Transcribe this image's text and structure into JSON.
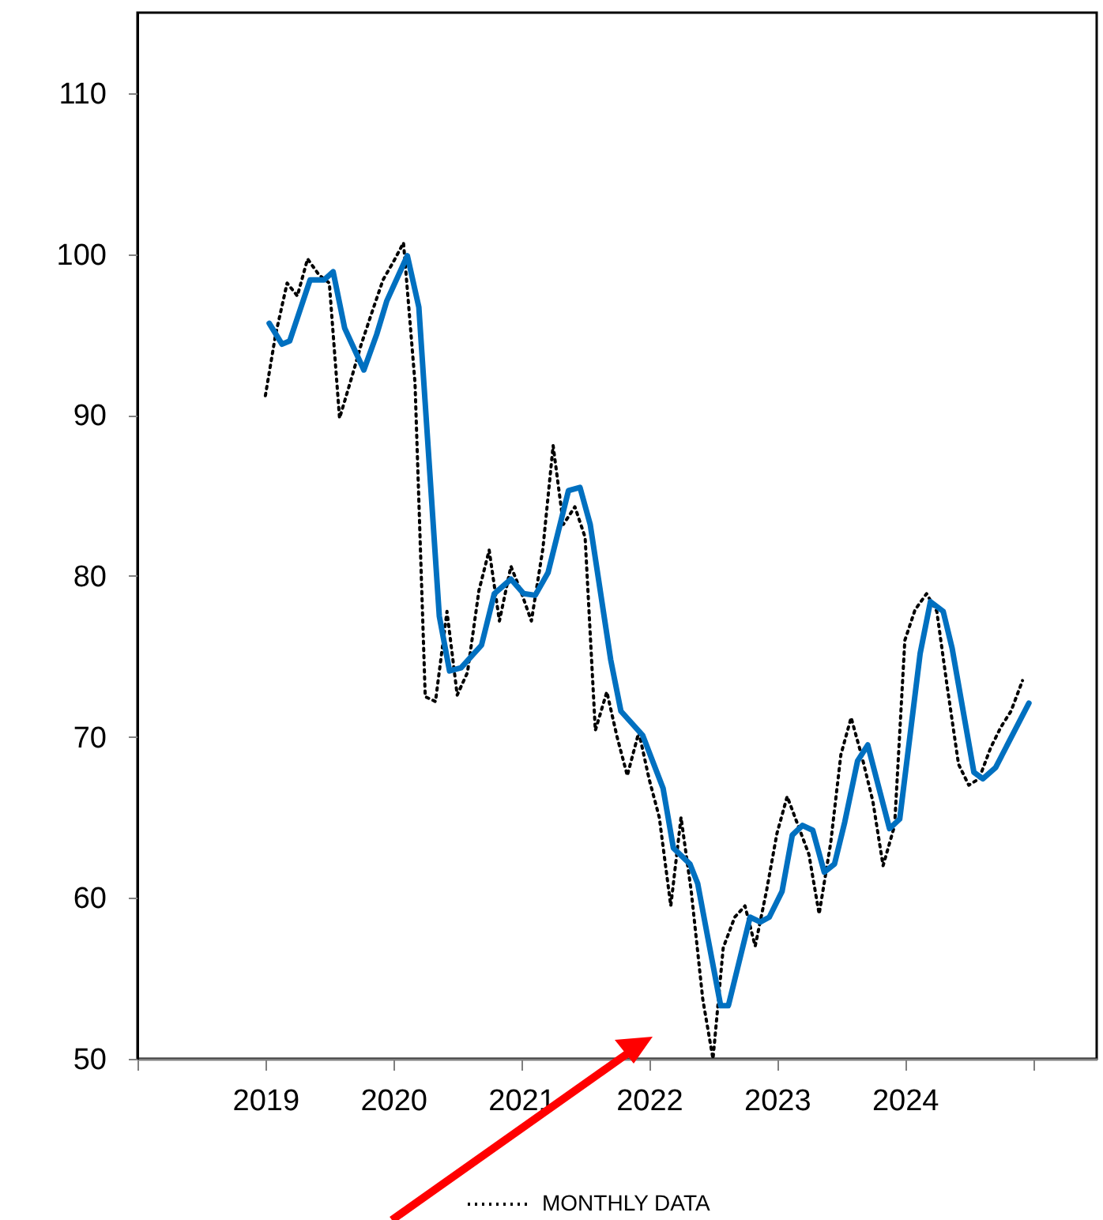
{
  "chart_data": {
    "type": "line",
    "xlim": [
      2018,
      2025.5
    ],
    "xticks": [
      {
        "value": 2018,
        "label": null
      },
      2019,
      2020,
      2021,
      2022,
      2023,
      2024,
      {
        "value": 2025,
        "label": null
      }
    ],
    "ylim": [
      50,
      115
    ],
    "yticks": [
      50,
      60,
      70,
      80,
      90,
      100,
      110
    ],
    "grid": false,
    "legend": "bottom",
    "marker": "none",
    "series": [
      {
        "name": "MONTHLY DATA",
        "color": "#000000",
        "line_style": "dotted",
        "x": [
          2019,
          2019.08,
          2019.17,
          2019.25,
          2019.33,
          2019.42,
          2019.5,
          2019.58,
          2019.67,
          2019.75,
          2019.83,
          2019.92,
          2020,
          2020.08,
          2020.17,
          2020.25,
          2020.33,
          2020.42,
          2020.5,
          2020.58,
          2020.67,
          2020.75,
          2020.83,
          2020.92,
          2021,
          2021.08,
          2021.17,
          2021.25,
          2021.33,
          2021.42,
          2021.5,
          2021.58,
          2021.67,
          2021.75,
          2021.83,
          2021.92,
          2022,
          2022.08,
          2022.17,
          2022.25,
          2022.33,
          2022.42,
          2022.5,
          2022.58,
          2022.67,
          2022.75,
          2022.83,
          2022.92,
          2023,
          2023.08,
          2023.17,
          2023.25,
          2023.33,
          2023.42,
          2023.5,
          2023.58,
          2023.67,
          2023.75,
          2023.83,
          2023.92,
          2024,
          2024.08,
          2024.17,
          2024.25,
          2024.33,
          2024.42,
          2024.5,
          2024.58,
          2024.67,
          2024.75,
          2024.83,
          2024.92
        ],
        "values": [
          91.2,
          95,
          98.2,
          97.4,
          99.7,
          98.7,
          98.2,
          89.8,
          92.2,
          94.4,
          96.3,
          98.4,
          99.5,
          100.7,
          92,
          72.5,
          72.2,
          77.8,
          72.6,
          74,
          79.1,
          81.6,
          77.2,
          80.6,
          79,
          77.2,
          81.7,
          88.1,
          83.2,
          84.3,
          82.4,
          70.4,
          72.8,
          70,
          67.6,
          70.3,
          67.4,
          65,
          59.5,
          65,
          60.4,
          53.7,
          50,
          56.9,
          58.8,
          59.5,
          57,
          60.5,
          64,
          66.3,
          64.4,
          62.7,
          59,
          63.4,
          68.9,
          71.2,
          68.6,
          66,
          62,
          64.5,
          76,
          77.9,
          78.9,
          77.8,
          73.2,
          68.3,
          67,
          67.4,
          69.3,
          70.6,
          71.6,
          73.5
        ]
      },
      {
        "color": "#0070c0",
        "line_style": "solid",
        "x": [
          2019.03,
          2019.13,
          2019.19,
          2019.35,
          2019.46,
          2019.53,
          2019.62,
          2019.77,
          2019.87,
          2019.95,
          2020.11,
          2020.2,
          2020.36,
          2020.44,
          2020.53,
          2020.69,
          2020.79,
          2020.92,
          2021.02,
          2021.11,
          2021.21,
          2021.37,
          2021.46,
          2021.54,
          2021.7,
          2021.78,
          2021.95,
          2022.11,
          2022.19,
          2022.32,
          2022.38,
          2022.46,
          2022.56,
          2022.62,
          2022.79,
          2022.87,
          2022.94,
          2023.04,
          2023.12,
          2023.2,
          2023.28,
          2023.37,
          2023.45,
          2023.53,
          2023.63,
          2023.71,
          2023.88,
          2023.96,
          2024.12,
          2024.2,
          2024.3,
          2024.37,
          2024.54,
          2024.61,
          2024.71,
          2024.97
        ],
        "values": [
          95.7,
          94.4,
          94.6,
          98.4,
          98.4,
          98.9,
          95.4,
          92.8,
          95,
          97.1,
          99.9,
          96.7,
          77.5,
          74.1,
          74.3,
          75.7,
          78.9,
          79.8,
          78.9,
          78.8,
          80.2,
          85.3,
          85.5,
          83.2,
          74.8,
          71.6,
          70.1,
          66.8,
          63.1,
          62.1,
          60.9,
          57.5,
          53.3,
          53.3,
          58.8,
          58.5,
          58.8,
          60.4,
          63.9,
          64.5,
          64.2,
          61.6,
          62.1,
          64.7,
          68.5,
          69.5,
          64.3,
          64.9,
          75.2,
          78.4,
          77.8,
          75.5,
          67.8,
          67.4,
          68.1,
          72.1
        ]
      }
    ]
  }
}
